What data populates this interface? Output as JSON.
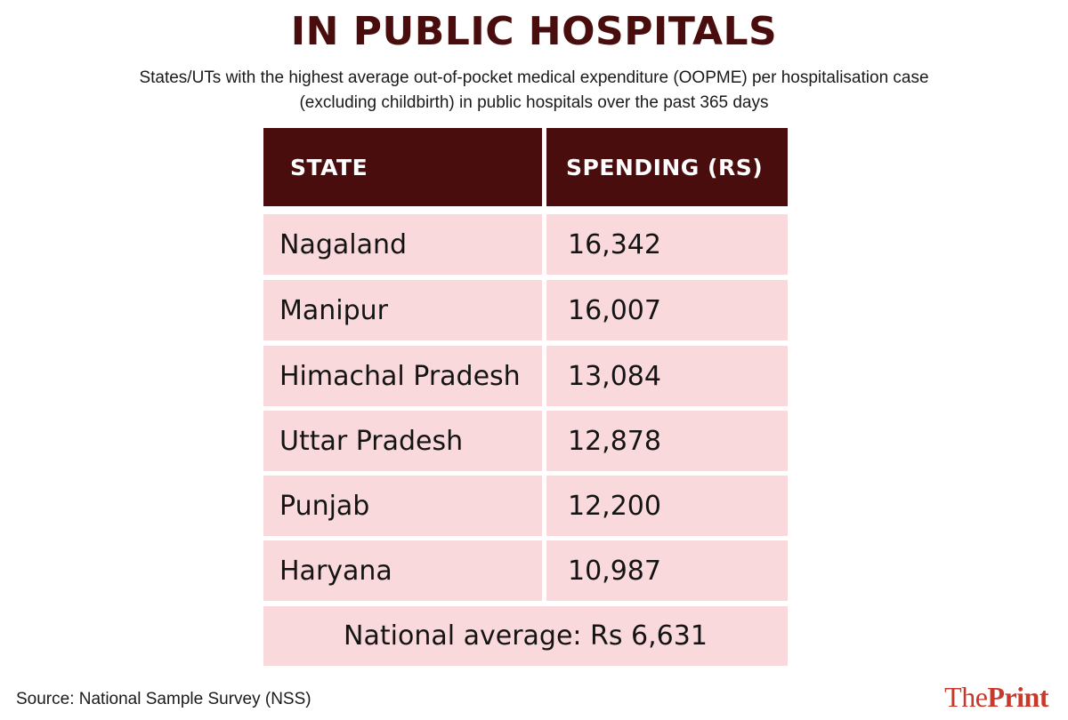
{
  "title": "IN PUBLIC HOSPITALS",
  "subtitle_line1": "States/UTs with the highest average out-of-pocket medical expenditure (OOPME) per hospitalisation case",
  "subtitle_line2": "(excluding childbirth) in public hospitals over the past 365 days",
  "chart_data": {
    "type": "table",
    "title": "IN PUBLIC HOSPITALS",
    "columns": [
      "STATE",
      "SPENDING (RS)"
    ],
    "rows": [
      {
        "state": "Nagaland",
        "spending": "16,342"
      },
      {
        "state": "Manipur",
        "spending": "16,007"
      },
      {
        "state": "Himachal Pradesh",
        "spending": "13,084"
      },
      {
        "state": "Uttar Pradesh",
        "spending": "12,878"
      },
      {
        "state": "Punjab",
        "spending": "12,200"
      },
      {
        "state": "Haryana",
        "spending": "10,987"
      }
    ],
    "footer": "National average: Rs 6,631"
  },
  "source": "Source: National Sample Survey (NSS)",
  "logo": {
    "the": "The",
    "print": "Print"
  },
  "colors": {
    "header_bg": "#4a0d0d",
    "row_bg": "#f9d9dc",
    "logo": "#c8392b"
  }
}
